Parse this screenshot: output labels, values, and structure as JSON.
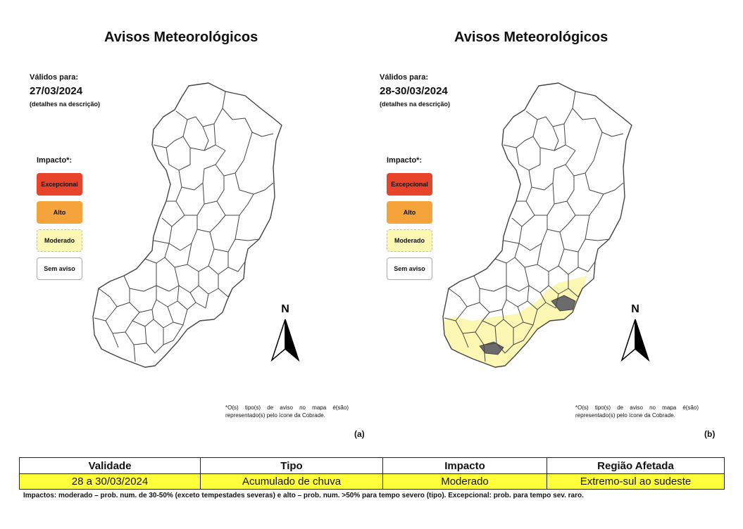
{
  "colors": {
    "excepcional": "#e8432b",
    "alto": "#f5a33b",
    "moderado": "#fdf7b4",
    "sem_aviso": "#ffffff",
    "map_stroke": "#444444",
    "highlight_table": "#ffff3a",
    "hatched_area": "#6b6b6b"
  },
  "panels": [
    {
      "title": "Avisos Meteorológicos",
      "valid_label": "Válidos para:",
      "valid_date": "27/03/2024",
      "valid_note": "(detalhes na descrição)",
      "impact_label": "Impacto*:",
      "legend": [
        "Excepcional",
        "Alto",
        "Moderado",
        "Sem aviso"
      ],
      "north": "N",
      "footnote": "*O(s) tipo(s) de aviso no mapa é(são) representado(s) pelo ícone da Cobrade.",
      "letter": "(a)"
    },
    {
      "title": "Avisos Meteorológicos",
      "valid_label": "Válidos para:",
      "valid_date": "28-30/03/2024",
      "valid_note": "(detalhes na descrição)",
      "impact_label": "Impacto*:",
      "legend": [
        "Excepcional",
        "Alto",
        "Moderado",
        "Sem aviso"
      ],
      "north": "N",
      "footnote": "*O(s) tipo(s) de aviso no mapa é(são) representado(s) pelo ícone da Cobrade.",
      "letter": "(b)"
    }
  ],
  "table": {
    "headers": [
      "Validade",
      "Tipo",
      "Impacto",
      "Região Afetada"
    ],
    "rows": [
      [
        "28 a 30/03/2024",
        "Acumulado de chuva",
        "Moderado",
        "Extremo-sul ao sudeste"
      ]
    ],
    "note": "Impactos: moderado – prob. num. de 30-50% (exceto tempestades severas) e alto – prob. num. >50% para tempo severo (tipo). Excepcional: prob. para tempo sev. raro."
  }
}
